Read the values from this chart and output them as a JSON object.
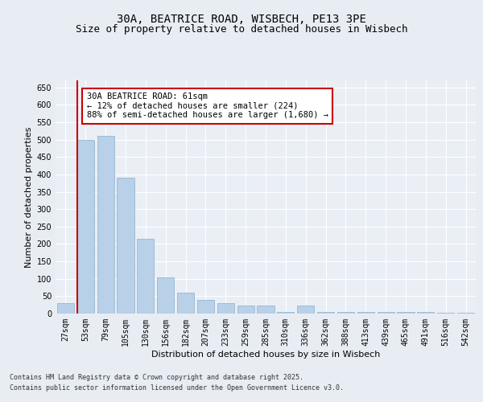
{
  "title_line1": "30A, BEATRICE ROAD, WISBECH, PE13 3PE",
  "title_line2": "Size of property relative to detached houses in Wisbech",
  "xlabel": "Distribution of detached houses by size in Wisbech",
  "ylabel": "Number of detached properties",
  "bins": [
    "27sqm",
    "53sqm",
    "79sqm",
    "105sqm",
    "130sqm",
    "156sqm",
    "182sqm",
    "207sqm",
    "233sqm",
    "259sqm",
    "285sqm",
    "310sqm",
    "336sqm",
    "362sqm",
    "388sqm",
    "413sqm",
    "439sqm",
    "465sqm",
    "491sqm",
    "516sqm",
    "542sqm"
  ],
  "values": [
    30,
    500,
    510,
    390,
    215,
    105,
    60,
    40,
    30,
    22,
    22,
    5,
    22,
    5,
    5,
    5,
    5,
    5,
    5,
    2,
    2
  ],
  "bar_color": "#b8d0e8",
  "bar_edge_color": "#8ab0cc",
  "vline_color": "#cc0000",
  "annotation_text": "30A BEATRICE ROAD: 61sqm\n← 12% of detached houses are smaller (224)\n88% of semi-detached houses are larger (1,680) →",
  "annotation_box_color": "#ffffff",
  "annotation_box_edge": "#cc0000",
  "ylim": [
    0,
    670
  ],
  "yticks": [
    0,
    50,
    100,
    150,
    200,
    250,
    300,
    350,
    400,
    450,
    500,
    550,
    600,
    650
  ],
  "bg_color": "#e8edf4",
  "plot_bg_color": "#eaeff6",
  "footer_line1": "Contains HM Land Registry data © Crown copyright and database right 2025.",
  "footer_line2": "Contains public sector information licensed under the Open Government Licence v3.0.",
  "grid_color": "#ffffff",
  "title_fontsize": 10,
  "subtitle_fontsize": 9,
  "axis_label_fontsize": 8,
  "tick_fontsize": 7,
  "annotation_fontsize": 7.5,
  "footer_fontsize": 6
}
